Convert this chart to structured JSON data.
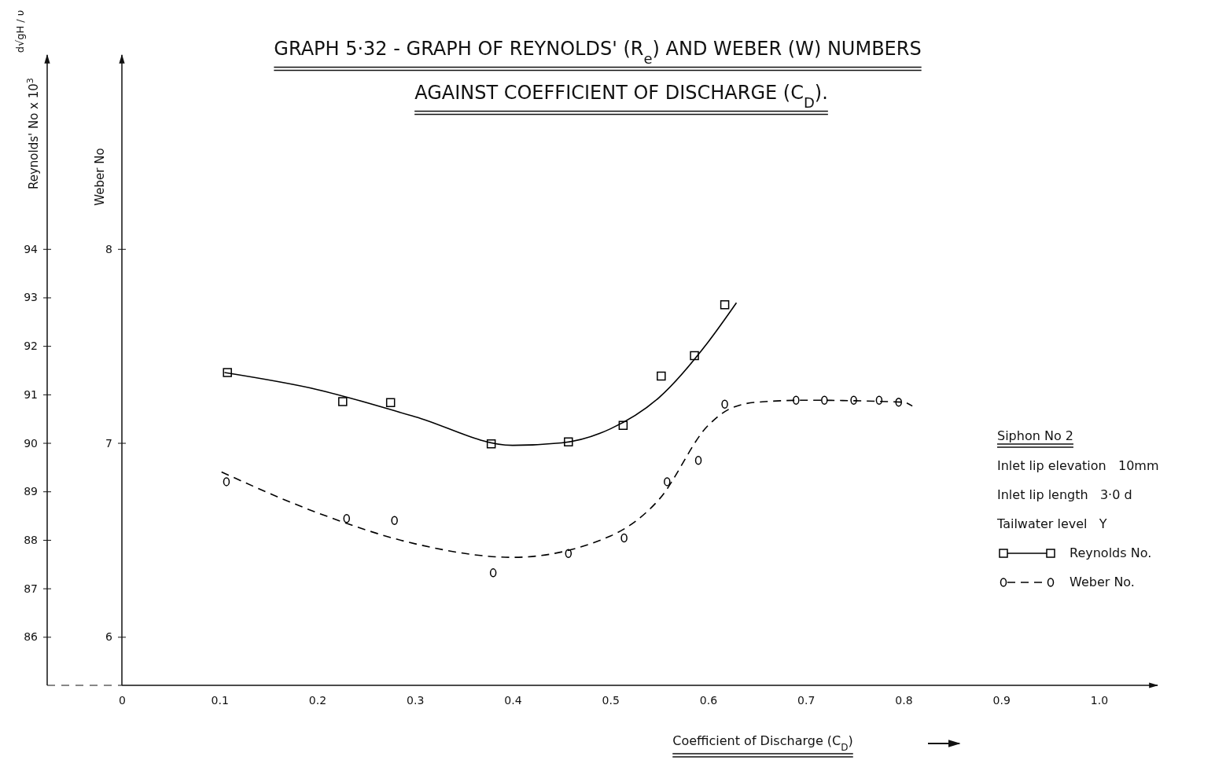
{
  "chart_data": {
    "type": "scatter",
    "title": "GRAPH 5·32 - GRAPH OF REYNOLDS' (R$_{e}$) AND WEBER (W) NUMBERS",
    "subtitle": "AGAINST COEFFICIENT OF DISCHARGE (C$_{D}$).",
    "xlabel": "Coefficient of Discharge (C$_{D}$)",
    "ylabel": "Reynolds' No x 10$^{3}$",
    "y2label": "Weber No",
    "legend_title": "Siphon No 2",
    "annotations": [
      "Inlet lip elevation   10mm",
      "Inlet lip length   3·0 d",
      "Tailwater level   Y",
      "d√gH / υ"
    ],
    "xlim": [
      0,
      1.06
    ],
    "xticks": [
      0,
      0.1,
      0.2,
      0.3,
      0.4,
      0.5,
      0.6,
      0.7,
      0.8,
      0.9,
      {
        "value": 1,
        "label": "1.0"
      }
    ],
    "ylim": [
      85,
      98
    ],
    "yticks": [
      86,
      87,
      88,
      89,
      90,
      91,
      92,
      93,
      94
    ],
    "y2lim": [
      5.75,
      9.0
    ],
    "y2ticks": [
      6,
      7,
      8
    ],
    "legend": "right",
    "series": [
      {
        "name": "Reynolds No.",
        "type": "scatter",
        "marker": "square",
        "color": "#000000",
        "x": [
          0.108,
          0.226,
          0.275,
          0.378,
          0.457,
          0.513,
          0.552,
          0.586,
          0.617
        ],
        "values": [
          91.45,
          90.85,
          90.83,
          89.98,
          90.02,
          90.36,
          91.38,
          91.8,
          92.85
        ]
      },
      {
        "type": "line",
        "line_style": "solid",
        "color": "#000000",
        "x": [
          0.105,
          0.2,
          0.3,
          0.4,
          0.45,
          0.5,
          0.55,
          0.6,
          0.629
        ],
        "values": [
          91.45,
          91.1,
          90.54,
          89.95,
          90.0,
          90.29,
          90.94,
          92.08,
          92.89
        ]
      },
      {
        "name": "Weber No.",
        "type": "scatter",
        "marker": "circle",
        "axis": "y2",
        "color": "#000000",
        "x": [
          0.107,
          0.23,
          0.279,
          0.38,
          0.457,
          0.514,
          0.558,
          0.59,
          0.617,
          0.69,
          0.719,
          0.749,
          0.775,
          0.795
        ],
        "values": [
          6.8,
          6.61,
          6.6,
          6.33,
          6.43,
          6.51,
          6.8,
          6.91,
          7.2,
          7.22,
          7.22,
          7.22,
          7.22,
          7.21
        ]
      },
      {
        "type": "line",
        "line_style": "dashed",
        "axis": "y2",
        "color": "#000000",
        "x": [
          0.102,
          0.2,
          0.3,
          0.4,
          0.5,
          0.55,
          0.6,
          0.62,
          0.65,
          0.7,
          0.8,
          0.809
        ],
        "values": [
          6.85,
          6.64,
          6.48,
          6.41,
          6.52,
          6.71,
          7.09,
          7.17,
          7.21,
          7.22,
          7.21,
          7.19
        ]
      }
    ]
  }
}
